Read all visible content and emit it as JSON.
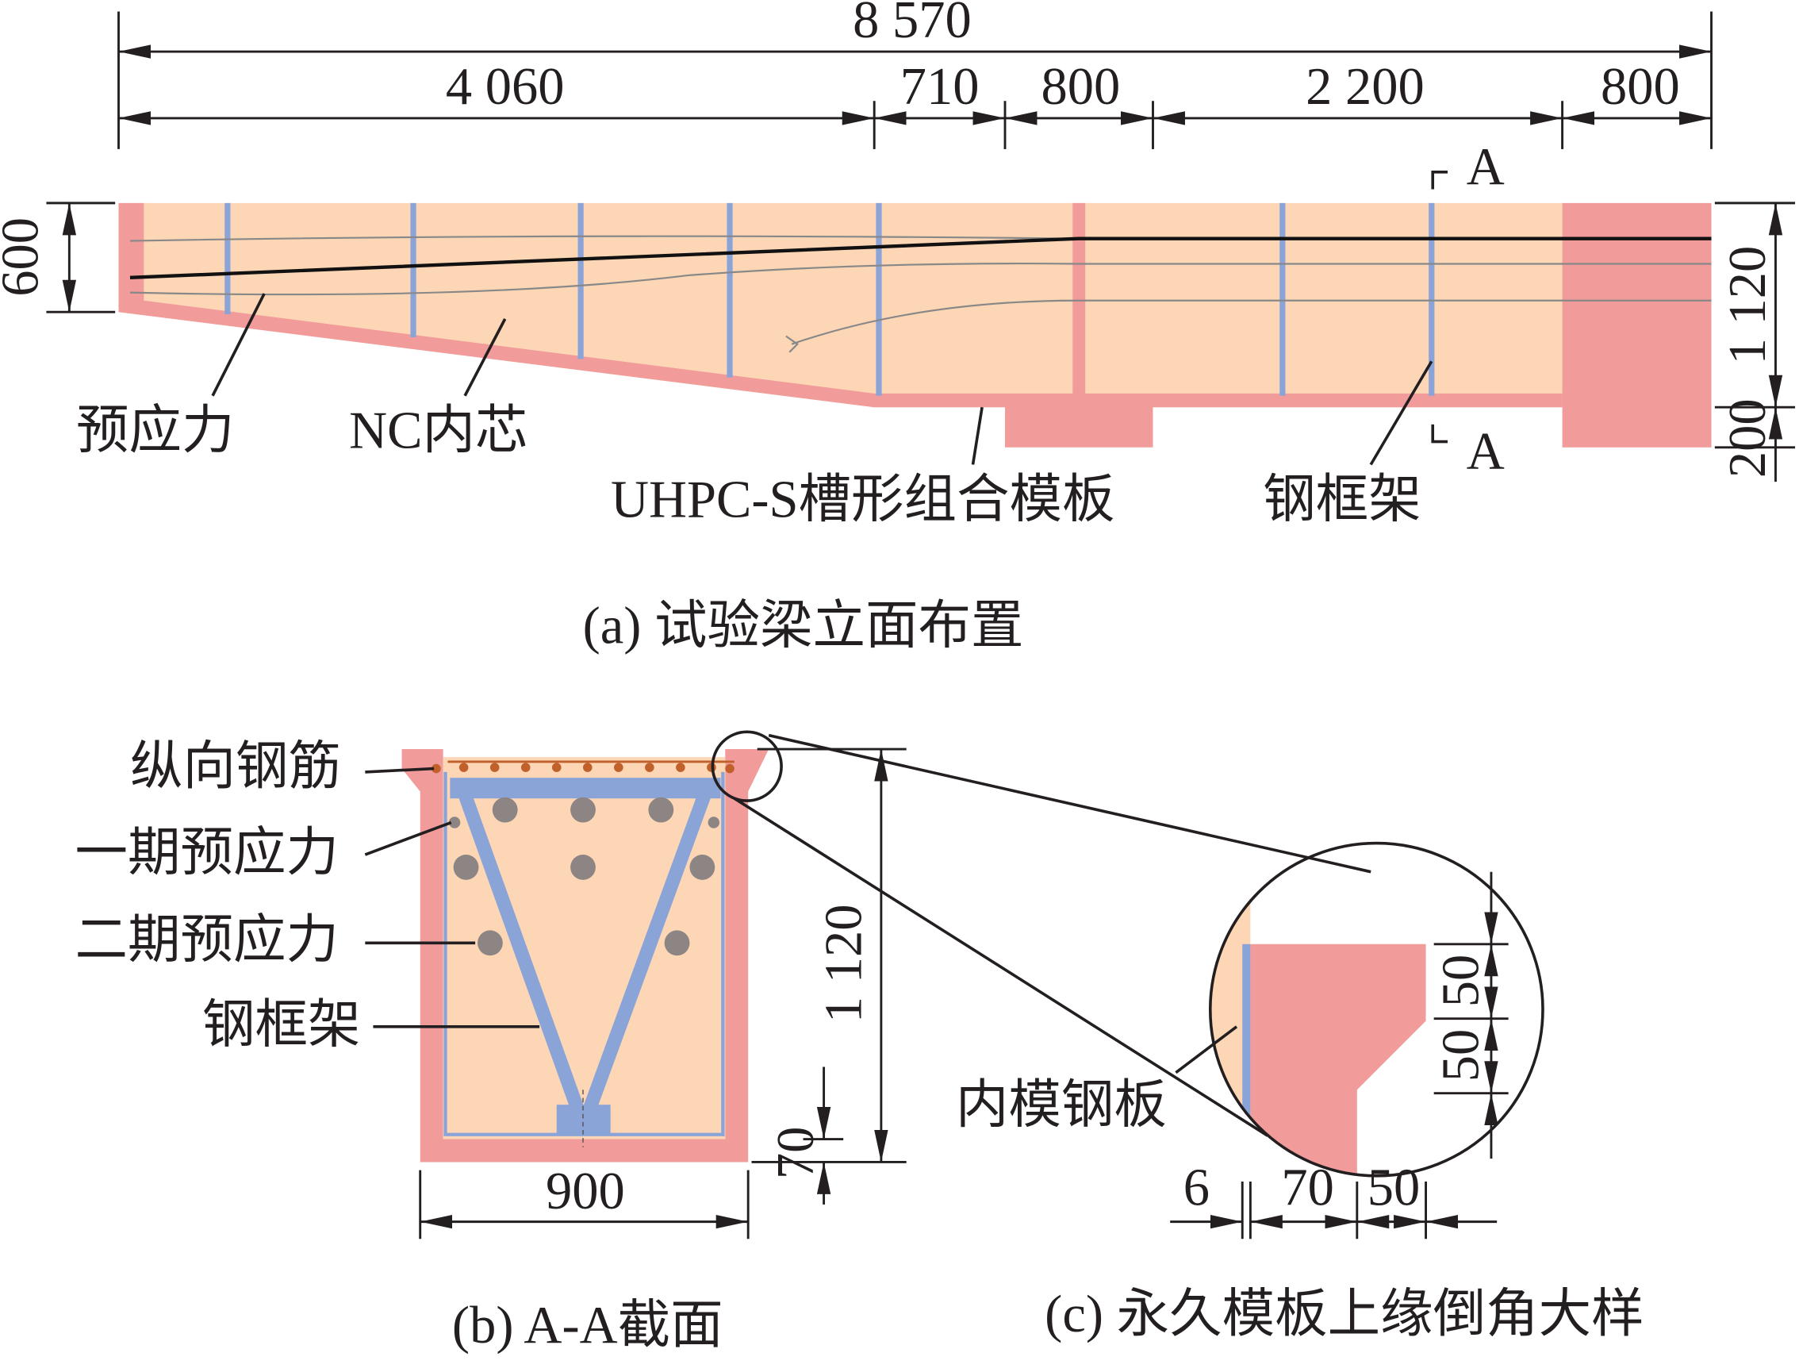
{
  "elevation": {
    "dimensions": {
      "total": "8 570",
      "segments": [
        "4 060",
        "710",
        "800",
        "2 200",
        "800"
      ],
      "left_height": "600",
      "right_height": "1 120",
      "right_bottom": "200"
    },
    "section_marks": [
      "A",
      "A"
    ],
    "labels": [
      "预应力",
      "NC内芯",
      "UHPC-S槽形组合模板",
      "钢框架"
    ],
    "caption": "(a) 试验梁立面布置"
  },
  "section": {
    "labels": [
      "纵向钢筋",
      "一期预应力",
      "二期预应力",
      "钢框架"
    ],
    "dimensions": {
      "height": "1 120",
      "width": "900",
      "bottom": "70"
    },
    "caption": "(b) A-A截面"
  },
  "detail": {
    "label": "内模钢板",
    "dimensions": {
      "right": [
        "50",
        "50"
      ],
      "bottom": [
        "6",
        "70",
        "50"
      ]
    },
    "caption": "(c) 永久模板上缘倒角大样"
  }
}
